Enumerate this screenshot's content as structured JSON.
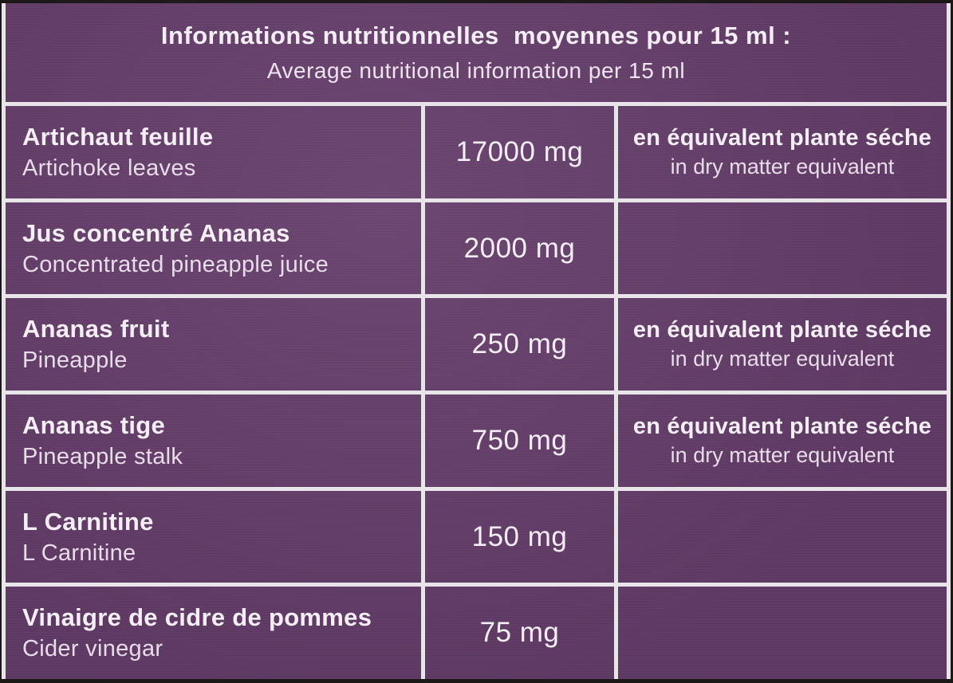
{
  "colors": {
    "label_background": "#633c69",
    "grid_lines": "#e9e4ea",
    "text_primary": "#f5eef6",
    "text_secondary": "#e9dcea",
    "scan_edge": "#1c1817"
  },
  "header": {
    "title_fr": "Informations nutritionnelles  moyennes pour 15 ml :",
    "title_en": "Average nutritional information per 15 ml"
  },
  "rows": [
    {
      "name_fr": "Artichaut feuille",
      "name_en": "Artichoke leaves",
      "amount": "17000 mg",
      "note_fr": "en équivalent plante séche",
      "note_en": "in dry matter equivalent"
    },
    {
      "name_fr": "Jus concentré Ananas",
      "name_en": "Concentrated pineapple juice",
      "amount": "2000 mg",
      "note_fr": "",
      "note_en": ""
    },
    {
      "name_fr": "Ananas fruit",
      "name_en": "Pineapple",
      "amount": "250 mg",
      "note_fr": "en équivalent plante séche",
      "note_en": "in dry matter equivalent"
    },
    {
      "name_fr": "Ananas tige",
      "name_en": "Pineapple stalk",
      "amount": "750 mg",
      "note_fr": "en équivalent plante séche",
      "note_en": "in dry matter equivalent"
    },
    {
      "name_fr": "L Carnitine",
      "name_en": "L Carnitine",
      "amount": "150 mg",
      "note_fr": "",
      "note_en": ""
    },
    {
      "name_fr": "Vinaigre de cidre de pommes",
      "name_en": "Cider vinegar",
      "amount": "75 mg",
      "note_fr": "",
      "note_en": ""
    }
  ]
}
